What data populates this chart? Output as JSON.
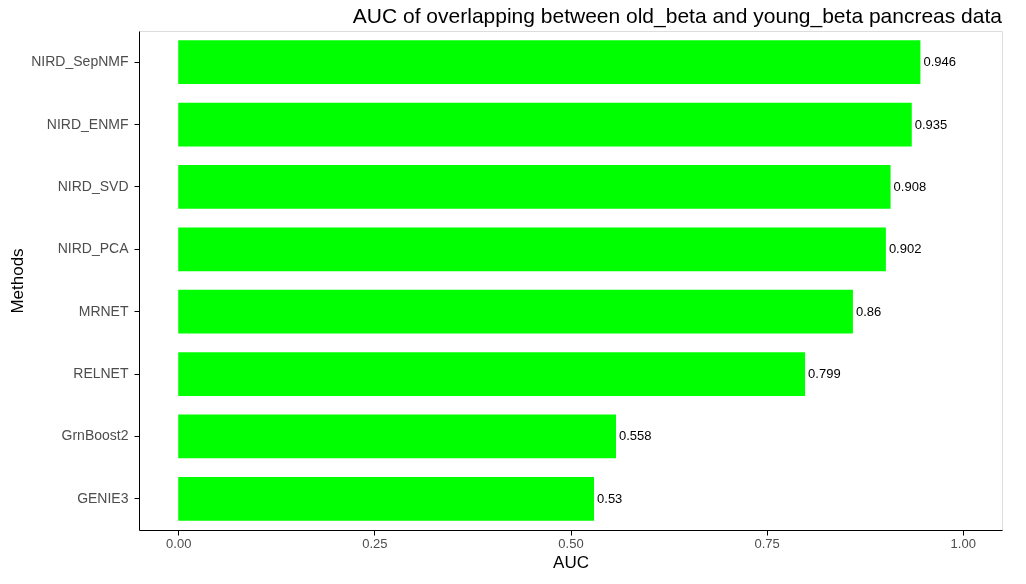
{
  "chart_data": {
    "type": "bar",
    "orientation": "horizontal",
    "title": "AUC of overlapping between old_beta and young_beta pancreas data",
    "xlabel": "AUC",
    "ylabel": "Methods",
    "categories": [
      "NIRD_SepNMF",
      "NIRD_ENMF",
      "NIRD_SVD",
      "NIRD_PCA",
      "MRNET",
      "RELNET",
      "GrnBoost2",
      "GENIE3"
    ],
    "values": [
      0.946,
      0.935,
      0.908,
      0.902,
      0.86,
      0.799,
      0.558,
      0.53
    ],
    "color": "#00ff00",
    "xlim": [
      -0.05,
      1.05
    ],
    "xticks": [
      {
        "value": 0,
        "label": "0.00"
      },
      {
        "value": 0.25,
        "label": "0.25"
      },
      {
        "value": 0.5,
        "label": "0.50"
      },
      {
        "value": 0.75,
        "label": "0.75"
      },
      {
        "value": 1,
        "label": "1.00"
      }
    ],
    "data_labels": true,
    "grid": false
  }
}
